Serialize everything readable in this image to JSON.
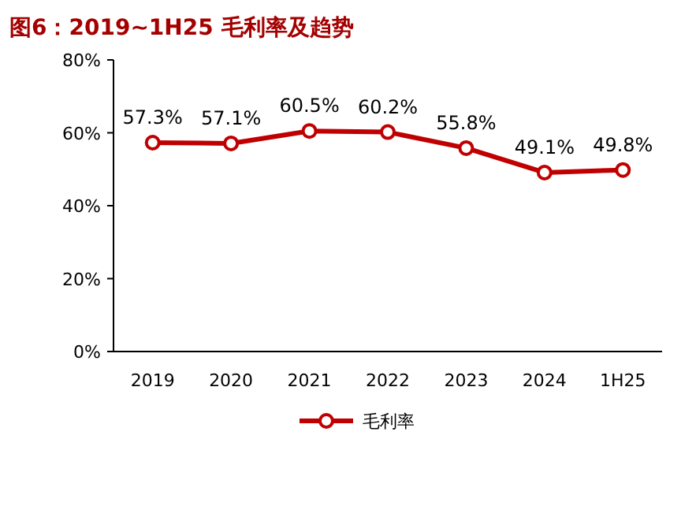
{
  "chart_data": {
    "type": "line",
    "title": "图6：2019~1H25 毛利率及趋势",
    "categories": [
      "2019",
      "2020",
      "2021",
      "2022",
      "2023",
      "2024",
      "1H25"
    ],
    "series": [
      {
        "name": "毛利率",
        "color": "#c00000",
        "values": [
          57.3,
          57.1,
          60.5,
          60.2,
          55.8,
          49.1,
          49.8
        ]
      }
    ],
    "value_labels": [
      "57.3%",
      "57.1%",
      "60.5%",
      "60.2%",
      "55.8%",
      "49.1%",
      "49.8%"
    ],
    "ylim": [
      0,
      80
    ],
    "yticks": [
      {
        "value": 0,
        "label": "0%"
      },
      {
        "value": 20,
        "label": "20%"
      },
      {
        "value": 40,
        "label": "40%"
      },
      {
        "value": 60,
        "label": "60%"
      },
      {
        "value": 80,
        "label": "80%"
      }
    ],
    "marker": "circle",
    "line_style": "solid",
    "legend": "bottom",
    "grid": false
  }
}
